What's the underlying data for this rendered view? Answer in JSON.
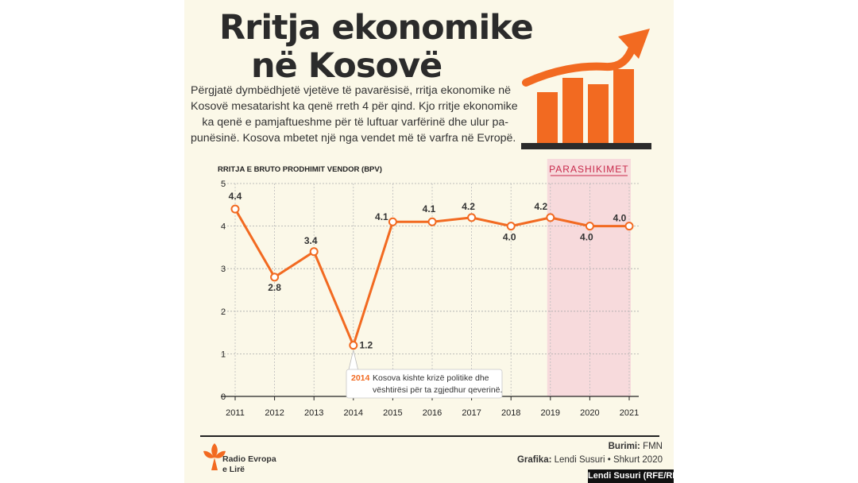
{
  "header": {
    "title_line1": "Rritja ekonomike",
    "title_line2": "në Kosovë",
    "description_lines": [
      "Përgjatë dymbëdhjetë vjetëve të pavarësisë, rritja ekonomike në",
      "Kosovë mesatarisht ka qenë rreth 4 për qind. Kjo rritje ekonomike",
      "ka qenë e pamjaftueshme për të luftuar varfërinë  dhe ulur pa-",
      "punësinë. Kosova mbetet një nga vendet më të varfra në Evropë."
    ]
  },
  "colors": {
    "accent": "#f26a21",
    "dark": "#2b2b2b",
    "forecast_band": "#f6d6da",
    "forecast_label": "#c8294b",
    "background": "#fbf8e8"
  },
  "chart_data": {
    "type": "line",
    "ylabel": "RRITJA E BRUTO PRODHIMIT VENDOR (BPV)",
    "x": [
      "2011",
      "2012",
      "2013",
      "2014",
      "2015",
      "2016",
      "2017",
      "2018",
      "2019",
      "2020",
      "2021"
    ],
    "values": [
      4.4,
      2.8,
      3.4,
      1.2,
      4.1,
      4.1,
      4.2,
      4.0,
      4.2,
      4.0,
      4.0
    ],
    "data_labels": [
      "4.4",
      "2.8",
      "3.4",
      "1.2",
      "4.1",
      "4.1",
      "4.2",
      "4.0",
      "4.2",
      "4.0",
      "4.0"
    ],
    "yticks": [
      "0",
      "1",
      "2",
      "3",
      "4",
      "5"
    ],
    "ylim": [
      0,
      5
    ],
    "grid": true,
    "forecast": {
      "label": "PARASHIKIMET",
      "from": "2019",
      "to": "2021"
    },
    "annotation": {
      "year": "2014",
      "line1": "Kosova kishte krizë politike dhe",
      "line2": "vështirësi për ta zgjedhur qeverinë."
    }
  },
  "footer": {
    "source_label": "Burimi:",
    "source_value": "FMN",
    "graphics_label": "Grafika:",
    "graphics_value": "Lendi Susuri • Shkurt 2020",
    "brand_line1": "Radio Evropa",
    "brand_line2": "e Lirë",
    "credit": "Lendi Susuri (RFE/RL)"
  }
}
